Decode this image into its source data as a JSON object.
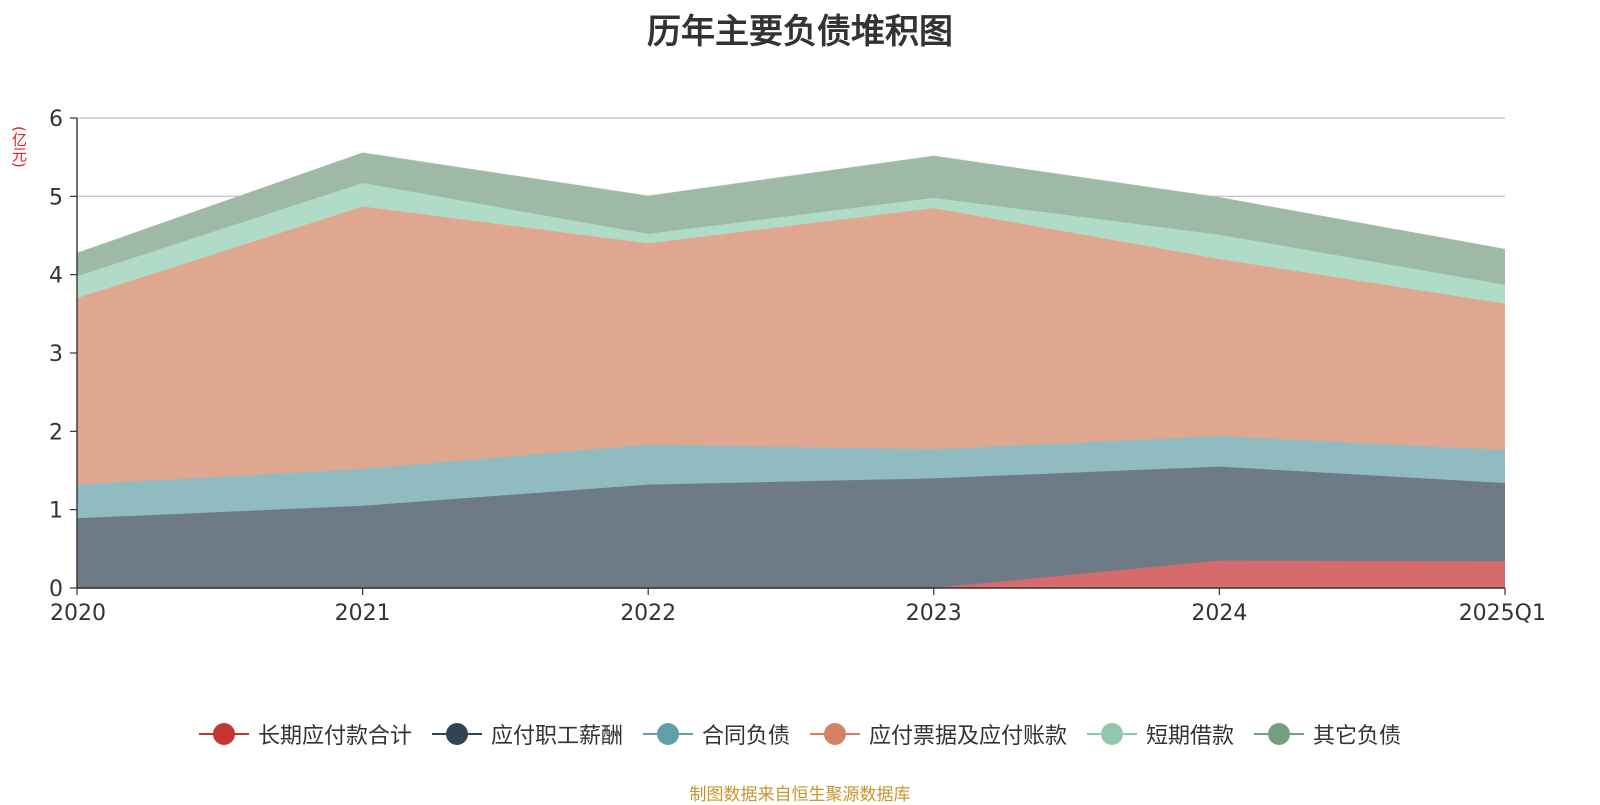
{
  "chart_data": {
    "type": "area",
    "stacked": true,
    "title": "历年主要负债堆积图",
    "unit_label": "(亿元)",
    "categories": [
      "2020",
      "2021",
      "2022",
      "2023",
      "2024",
      "2025Q1"
    ],
    "ylim": [
      0,
      6
    ],
    "yticks": [
      "0",
      "1",
      "2",
      "3",
      "4",
      "5",
      "6"
    ],
    "grid": true,
    "legend_position": "bottom",
    "series": [
      {
        "name": "长期应付款合计",
        "color": "#c23531",
        "fill": "#d66b6b",
        "values": [
          0,
          0,
          0,
          0,
          0.35,
          0.34
        ]
      },
      {
        "name": "应付职工薪酬",
        "color": "#2f4554",
        "fill": "#6e7b87",
        "values": [
          0.89,
          1.05,
          1.32,
          1.4,
          1.2,
          1.0
        ]
      },
      {
        "name": "合同负债",
        "color": "#61a0a8",
        "fill": "#90bbc0",
        "values": [
          0.43,
          0.47,
          0.51,
          0.37,
          0.39,
          0.42
        ]
      },
      {
        "name": "应付票据及应付账款",
        "color": "#d48265",
        "fill": "#e0a790",
        "values": [
          2.38,
          3.35,
          2.57,
          3.08,
          2.26,
          1.87
        ]
      },
      {
        "name": "短期借款",
        "color": "#91c7ae",
        "fill": "#b0dbc7",
        "values": [
          0.28,
          0.3,
          0.12,
          0.13,
          0.31,
          0.24
        ]
      },
      {
        "name": "其它负债",
        "color": "#749f83",
        "fill": "#9eb9a6",
        "values": [
          0.29,
          0.38,
          0.48,
          0.53,
          0.47,
          0.45
        ]
      }
    ]
  },
  "footer": {
    "source": "制图数据来自恒生聚源数据库"
  }
}
